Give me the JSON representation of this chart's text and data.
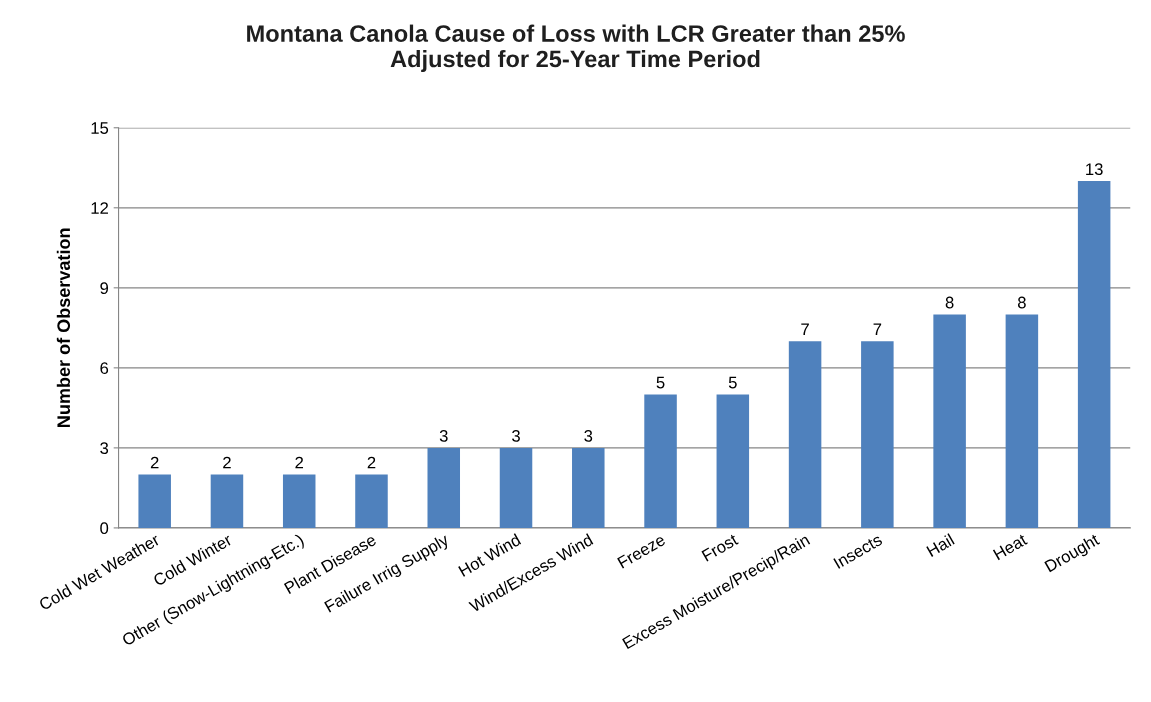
{
  "chart_data": {
    "type": "bar",
    "title": "Montana Canola Cause of Loss with LCR Greater than 25%\nAdjusted for 25-Year Time Period",
    "ylabel": "Number of Observation",
    "categories": [
      "Cold Wet Weather",
      "Cold Winter",
      "Other (Snow-Lightning-Etc.)",
      "Plant Disease",
      "Failure Irrig Supply",
      "Hot Wind",
      "Wind/Excess Wind",
      "Freeze",
      "Frost",
      "Excess Moisture/Precip/Rain",
      "Insects",
      "Hail",
      "Heat",
      "Drought"
    ],
    "values": [
      2,
      2,
      2,
      2,
      3,
      3,
      3,
      5,
      5,
      7,
      7,
      8,
      8,
      13
    ],
    "color": "#4f81bd",
    "ylim": [
      0,
      15
    ],
    "yticks": [
      0,
      3,
      6,
      9,
      12,
      15
    ],
    "grid": "y",
    "data_labels": true
  }
}
